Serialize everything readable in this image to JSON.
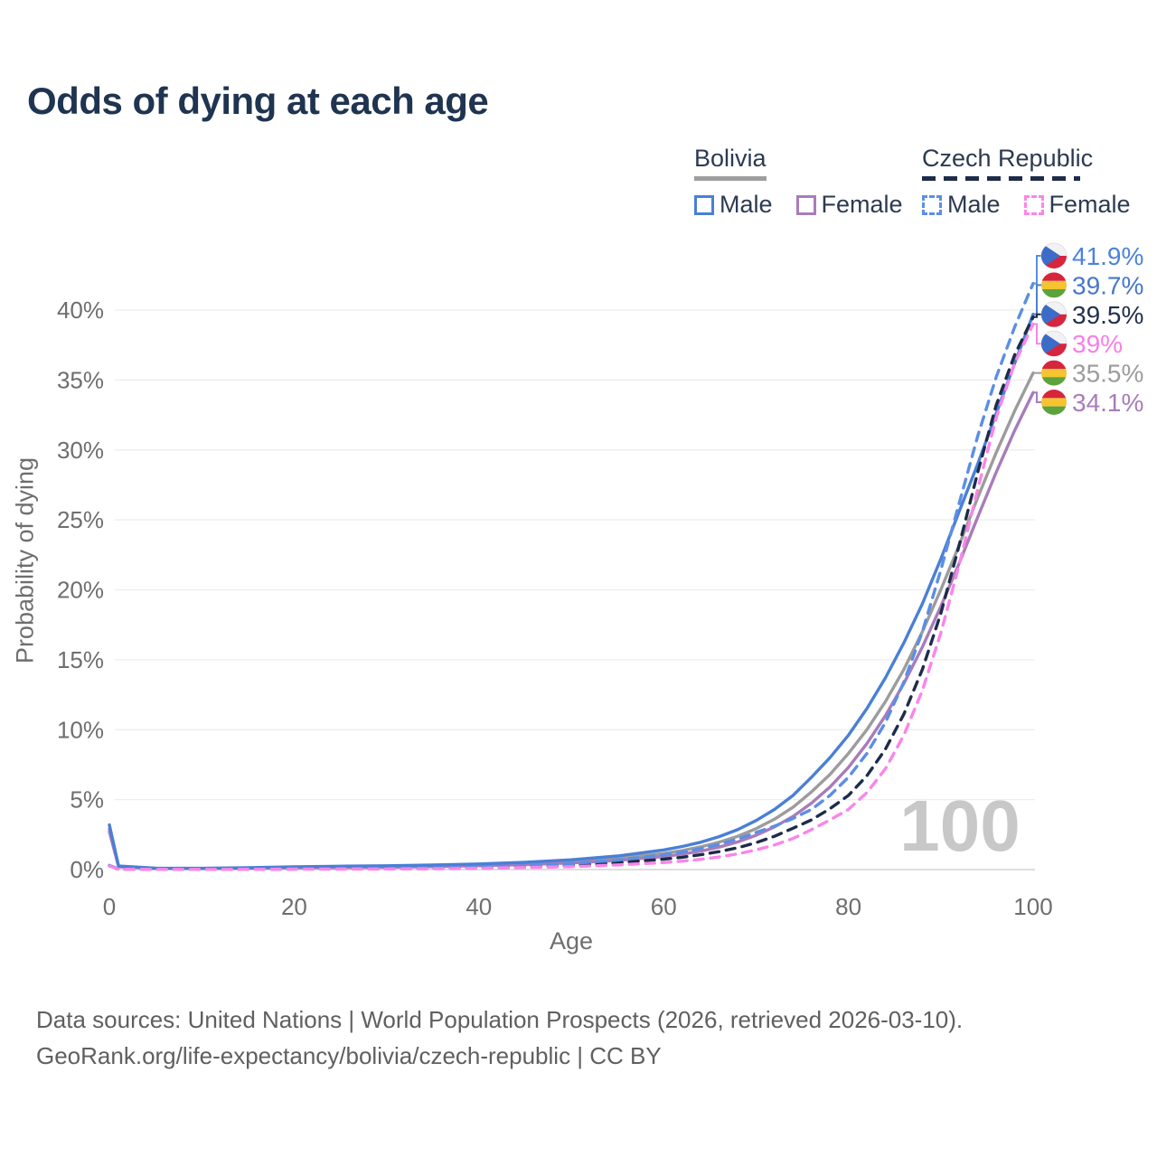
{
  "title": "Odds of dying at each age",
  "watermark": "100",
  "legend": {
    "groups": [
      {
        "label": "Bolivia",
        "style": "solid",
        "items": [
          {
            "label": "Male",
            "color": "#4a7fd6"
          },
          {
            "label": "Female",
            "color": "#a87cba"
          }
        ]
      },
      {
        "label": "Czech Republic",
        "style": "dashed",
        "items": [
          {
            "label": "Male",
            "color": "#5b8ee6"
          },
          {
            "label": "Female",
            "color": "#fb85e9"
          }
        ]
      }
    ]
  },
  "footer": {
    "line1": "Data sources: United Nations | World Population Prospects (2026, retrieved 2026-03-10).",
    "line2": "GeoRank.org/life-expectancy/bolivia/czech-republic | CC BY"
  },
  "chart_data": {
    "type": "line",
    "title": "Odds of dying at each age",
    "xlabel": "Age",
    "ylabel": "Probability of dying",
    "xlim": [
      0,
      100
    ],
    "ylim": [
      0,
      44
    ],
    "xticks": [
      0,
      20,
      40,
      60,
      80,
      100
    ],
    "yticks": [
      0,
      5,
      10,
      15,
      20,
      25,
      30,
      35,
      40
    ],
    "y_unit": "%",
    "grid": true,
    "legend_position": "top-right",
    "hover_age_indicator": "100",
    "x": [
      0,
      1,
      5,
      10,
      15,
      20,
      25,
      30,
      35,
      40,
      45,
      50,
      55,
      60,
      62,
      64,
      66,
      68,
      70,
      72,
      74,
      76,
      78,
      80,
      82,
      84,
      86,
      88,
      90,
      92,
      94,
      96,
      98,
      100
    ],
    "series": [
      {
        "name": "Bolivia Both sexes",
        "country": "Bolivia",
        "sex": "both",
        "color": "#9c9c9c",
        "dash": false,
        "values": [
          2.9,
          0.22,
          0.09,
          0.08,
          0.11,
          0.16,
          0.19,
          0.22,
          0.26,
          0.33,
          0.43,
          0.58,
          0.8,
          1.15,
          1.36,
          1.62,
          1.95,
          2.38,
          2.92,
          3.6,
          4.45,
          5.55,
          6.8,
          8.3,
          10.0,
          12.0,
          14.3,
          17.0,
          20.0,
          23.2,
          26.6,
          29.8,
          32.8,
          35.5
        ],
        "end_label": {
          "text": "35.5%",
          "color": "#9c9c9c",
          "flag": "bolivia"
        }
      },
      {
        "name": "Bolivia Female",
        "country": "Bolivia",
        "sex": "female",
        "color": "#a87cba",
        "dash": false,
        "values": [
          2.7,
          0.2,
          0.08,
          0.07,
          0.09,
          0.12,
          0.14,
          0.17,
          0.21,
          0.27,
          0.35,
          0.47,
          0.65,
          0.93,
          1.1,
          1.32,
          1.6,
          1.97,
          2.45,
          3.05,
          3.8,
          4.75,
          5.9,
          7.3,
          9.0,
          11.0,
          13.3,
          15.9,
          18.8,
          21.9,
          25.2,
          28.4,
          31.4,
          34.1
        ],
        "end_label": {
          "text": "34.1%",
          "color": "#a87cba",
          "flag": "bolivia"
        }
      },
      {
        "name": "Bolivia Male",
        "country": "Bolivia",
        "sex": "male",
        "color": "#4a7fd6",
        "dash": false,
        "values": [
          3.2,
          0.25,
          0.1,
          0.09,
          0.13,
          0.2,
          0.24,
          0.27,
          0.32,
          0.4,
          0.52,
          0.7,
          0.97,
          1.4,
          1.65,
          1.95,
          2.35,
          2.85,
          3.5,
          4.3,
          5.3,
          6.6,
          8.0,
          9.6,
          11.5,
          13.7,
          16.2,
          19.0,
          22.2,
          25.6,
          29.0,
          32.6,
          36.2,
          39.7
        ],
        "end_label": {
          "text": "39.7%",
          "color": "#4677cd",
          "flag": "bolivia"
        }
      },
      {
        "name": "Czech Republic Both sexes",
        "country": "Czech Republic",
        "sex": "both",
        "color": "#1d2c49",
        "dash": true,
        "values": [
          0.28,
          0.025,
          0.01,
          0.01,
          0.02,
          0.04,
          0.05,
          0.06,
          0.08,
          0.12,
          0.19,
          0.3,
          0.48,
          0.74,
          0.88,
          1.06,
          1.28,
          1.56,
          1.92,
          2.38,
          2.95,
          3.55,
          4.35,
          5.3,
          6.7,
          8.6,
          11.1,
          14.3,
          18.3,
          23.2,
          28.4,
          33.2,
          36.8,
          39.5
        ],
        "end_label": {
          "text": "39.5%",
          "color": "#22304c",
          "flag": "czech"
        }
      },
      {
        "name": "Czech Republic Male",
        "country": "Czech Republic",
        "sex": "male",
        "color": "#5b8ee6",
        "dash": true,
        "values": [
          0.3,
          0.03,
          0.01,
          0.01,
          0.03,
          0.06,
          0.07,
          0.08,
          0.11,
          0.16,
          0.26,
          0.42,
          0.68,
          1.05,
          1.25,
          1.5,
          1.8,
          2.18,
          2.65,
          3.1,
          3.65,
          4.3,
          5.3,
          6.6,
          8.3,
          10.5,
          13.4,
          17.0,
          21.4,
          26.2,
          31.0,
          35.2,
          38.8,
          41.9
        ],
        "end_label": {
          "text": "41.9%",
          "color": "#4c82dd",
          "flag": "czech"
        }
      },
      {
        "name": "Czech Republic Female",
        "country": "Czech Republic",
        "sex": "female",
        "color": "#fb85e9",
        "dash": true,
        "values": [
          0.25,
          0.02,
          0.01,
          0.01,
          0.015,
          0.025,
          0.03,
          0.04,
          0.06,
          0.09,
          0.14,
          0.21,
          0.33,
          0.5,
          0.6,
          0.73,
          0.9,
          1.12,
          1.4,
          1.76,
          2.22,
          2.85,
          3.55,
          4.3,
          5.5,
          7.2,
          9.6,
          12.8,
          16.9,
          21.8,
          27.2,
          32.3,
          36.2,
          39.0
        ],
        "end_label": {
          "text": "39%",
          "color": "#f97ee7",
          "flag": "czech"
        }
      }
    ]
  }
}
